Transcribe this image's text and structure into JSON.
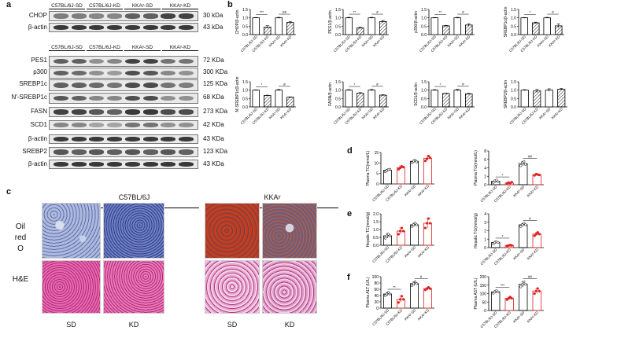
{
  "panel_labels": {
    "a": "a",
    "b": "b",
    "c": "c",
    "d": "d",
    "e": "e",
    "f": "f"
  },
  "panel_a": {
    "group_headers_top": [
      "C57BL/6J-SD",
      "C57BL/6J-KD",
      "KKAʸ-SD",
      "KKAʸ-KD"
    ],
    "group_headers_mid": [
      "C57BL/6J-SD",
      "C57BL/6J-KD",
      "KKAʸ-SD",
      "KKAʸ-KD"
    ],
    "blots": [
      {
        "label": "CHOP",
        "kda": "30 kDa",
        "intensity": [
          0.55,
          0.55,
          0.5,
          0.5,
          0.7,
          0.7,
          0.85,
          0.85
        ]
      },
      {
        "label": "β-actin",
        "kda": "43 kDa",
        "intensity": [
          0.9,
          0.9,
          0.9,
          0.9,
          0.9,
          0.9,
          0.9,
          0.9
        ]
      },
      {
        "label": "PES1",
        "kda": "72 KDa",
        "intensity": [
          0.7,
          0.7,
          0.45,
          0.5,
          0.85,
          0.85,
          0.6,
          0.6
        ]
      },
      {
        "label": "p300",
        "kda": "300 KDa",
        "intensity": [
          0.7,
          0.65,
          0.45,
          0.4,
          0.8,
          0.75,
          0.5,
          0.45
        ]
      },
      {
        "label": "SREBP1c",
        "kda": "125 KDa",
        "intensity": [
          0.7,
          0.7,
          0.65,
          0.6,
          0.8,
          0.8,
          0.6,
          0.55
        ]
      },
      {
        "label": "N′-SREBP1c",
        "kda": "68 KDa",
        "intensity": [
          0.75,
          0.7,
          0.5,
          0.5,
          0.8,
          0.8,
          0.45,
          0.45
        ]
      },
      {
        "label": "FASN",
        "kda": "273 KDa",
        "intensity": [
          0.85,
          0.85,
          0.75,
          0.7,
          0.9,
          0.9,
          0.8,
          0.8
        ]
      },
      {
        "label": "SCD1",
        "kda": "42 KDa",
        "intensity": [
          0.5,
          0.5,
          0.35,
          0.35,
          0.6,
          0.6,
          0.45,
          0.45
        ]
      },
      {
        "label": "β-actin",
        "kda": "43 KDa",
        "intensity": [
          0.9,
          0.9,
          0.9,
          0.9,
          0.9,
          0.9,
          0.9,
          0.9
        ]
      },
      {
        "label": "SREBP2",
        "kda": "123 KDa",
        "intensity": [
          0.75,
          0.7,
          0.75,
          0.7,
          0.75,
          0.7,
          0.75,
          0.7
        ]
      },
      {
        "label": "β-actin",
        "kda": "43 KDa",
        "intensity": [
          0.9,
          0.9,
          0.9,
          0.9,
          0.9,
          0.9,
          0.9,
          0.9
        ]
      }
    ]
  },
  "panel_c": {
    "group_titles": [
      "C57BL/6J",
      "KKAʸ"
    ],
    "row_labels": [
      "Oil\nred\nO",
      "H&E"
    ],
    "column_labels": [
      "SD",
      "KD",
      "SD",
      "KD"
    ]
  },
  "chart_data": [
    {
      "type": "bar",
      "panel": "b",
      "ylabel": "CHOP/β-actin",
      "categories": [
        "C57BL/6J-SD",
        "C57BL/6J-KD",
        "KKAʸ-SD",
        "KKAʸ-KD"
      ],
      "values": [
        1.0,
        0.45,
        1.0,
        0.72
      ],
      "errors": [
        0.02,
        0.08,
        0.03,
        0.05
      ],
      "ylim": [
        0,
        1.5
      ],
      "yticks": [
        "0.0",
        "0.5",
        "1.0",
        "1.5"
      ],
      "sig": [
        {
          "text": "***",
          "pair": [
            0,
            1
          ]
        },
        {
          "text": "##",
          "pair": [
            2,
            3
          ]
        }
      ]
    },
    {
      "type": "bar",
      "panel": "b",
      "ylabel": "PES1/β-actin",
      "categories": [
        "C57BL/6J-SD",
        "C57BL/6J-KD",
        "KKAʸ-SD",
        "KKAʸ-KD"
      ],
      "values": [
        1.0,
        0.4,
        1.0,
        0.78
      ],
      "errors": [
        0.03,
        0.04,
        0.03,
        0.06
      ],
      "ylim": [
        0,
        1.5
      ],
      "yticks": [
        "0.0",
        "0.5",
        "1.0",
        "1.5"
      ],
      "sig": [
        {
          "text": "**",
          "pair": [
            0,
            1
          ]
        },
        {
          "text": "#",
          "pair": [
            2,
            3
          ]
        }
      ]
    },
    {
      "type": "bar",
      "panel": "b",
      "ylabel": "p300/β-actin",
      "categories": [
        "C57BL/6J-SD",
        "C57BL/6J-KD",
        "KKAʸ-SD",
        "KKAʸ-KD"
      ],
      "values": [
        1.0,
        0.52,
        1.0,
        0.57
      ],
      "errors": [
        0.02,
        0.03,
        0.03,
        0.08
      ],
      "ylim": [
        0,
        1.5
      ],
      "yticks": [
        "0.0",
        "0.5",
        "1.0",
        "1.5"
      ],
      "sig": [
        {
          "text": "**",
          "pair": [
            0,
            1
          ]
        },
        {
          "text": "#",
          "pair": [
            2,
            3
          ]
        }
      ]
    },
    {
      "type": "bar",
      "panel": "b",
      "ylabel": "SREBP1c/β-actin",
      "categories": [
        "C57BL/6J-SD",
        "C57BL/6J-KD",
        "KKAʸ-SD",
        "KKAʸ-KD"
      ],
      "values": [
        1.0,
        0.7,
        1.0,
        0.52
      ],
      "errors": [
        0.02,
        0.04,
        0.03,
        0.12
      ],
      "ylim": [
        0,
        1.5
      ],
      "yticks": [
        "0.0",
        "0.5",
        "1.0",
        "1.5"
      ],
      "sig": [
        {
          "text": "*",
          "pair": [
            0,
            1
          ]
        },
        {
          "text": "#",
          "pair": [
            2,
            3
          ]
        }
      ]
    },
    {
      "type": "bar",
      "panel": "b",
      "ylabel": "N′-SREBP1c/β-actin",
      "categories": [
        "C57BL/6J-SD",
        "C57BL/6J-KD",
        "KKAʸ-SD",
        "KKAʸ-KD"
      ],
      "values": [
        1.0,
        0.68,
        1.0,
        0.58
      ],
      "errors": [
        0.02,
        0.02,
        0.04,
        0.02
      ],
      "ylim": [
        0,
        1.5
      ],
      "yticks": [
        "0.0",
        "0.5",
        "1.0",
        "1.5"
      ],
      "sig": [
        {
          "text": "*",
          "pair": [
            0,
            1
          ]
        },
        {
          "text": "#",
          "pair": [
            2,
            3
          ]
        }
      ]
    },
    {
      "type": "bar",
      "panel": "b",
      "ylabel": "FASN/β-actin",
      "categories": [
        "C57BL/6J-SD",
        "C57BL/6J-KD",
        "KKAʸ-SD",
        "KKAʸ-KD"
      ],
      "values": [
        1.0,
        0.82,
        1.0,
        0.7
      ],
      "errors": [
        0.03,
        0.03,
        0.04,
        0.03
      ],
      "ylim": [
        0,
        1.5
      ],
      "yticks": [
        "0.0",
        "0.5",
        "1.0",
        "1.5"
      ],
      "sig": [
        {
          "text": "*",
          "pair": [
            0,
            1
          ]
        },
        {
          "text": "#",
          "pair": [
            2,
            3
          ]
        }
      ]
    },
    {
      "type": "bar",
      "panel": "b",
      "ylabel": "SCD1/β-actin",
      "categories": [
        "C57BL/6J-SD",
        "C57BL/6J-KD",
        "KKAʸ-SD",
        "KKAʸ-KD"
      ],
      "values": [
        1.0,
        0.8,
        1.0,
        0.78
      ],
      "errors": [
        0.03,
        0.02,
        0.05,
        0.03
      ],
      "ylim": [
        0,
        1.5
      ],
      "yticks": [
        "0.0",
        "0.5",
        "1.0",
        "1.5"
      ],
      "sig": [
        {
          "text": "*",
          "pair": [
            0,
            1
          ]
        },
        {
          "text": "#",
          "pair": [
            2,
            3
          ]
        }
      ]
    },
    {
      "type": "bar",
      "panel": "b",
      "ylabel": "SREBP2/β-actin",
      "categories": [
        "C57BL/6J-SD",
        "C57BL/6J-KD",
        "KKAʸ-SD",
        "KKAʸ-KD"
      ],
      "values": [
        1.0,
        0.95,
        1.0,
        1.05
      ],
      "errors": [
        0.03,
        0.1,
        0.08,
        0.05
      ],
      "ylim": [
        0,
        1.5
      ],
      "yticks": [
        "0.0",
        "0.5",
        "1.0",
        "1.5"
      ],
      "sig": []
    },
    {
      "type": "bar",
      "panel": "d",
      "ylabel": "Plasma TC(mmol/L)",
      "categories": [
        "C57BL/6J-SD",
        "C57BL/6J-KD",
        "KKAʸ-SD",
        "KKAʸ-KD"
      ],
      "values": [
        6.5,
        7.8,
        10.8,
        12.2
      ],
      "errors": [
        0.5,
        0.8,
        0.6,
        1.0
      ],
      "points": [
        [
          5.8,
          6.4,
          6.9,
          7.0
        ],
        [
          7.0,
          7.7,
          8.4,
          8.0
        ],
        [
          10.1,
          10.9,
          11.4,
          10.5
        ],
        [
          11.0,
          12.0,
          13.3,
          12.5
        ]
      ],
      "ylim": [
        0,
        15
      ],
      "yticks": [
        "0",
        "5",
        "10",
        "15"
      ],
      "sig": []
    },
    {
      "type": "bar",
      "panel": "d",
      "ylabel": "Plasma TG(mmol/L)",
      "categories": [
        "C57BL/6J-SD",
        "C57BL/6J-KD",
        "KKAʸ-SD",
        "KKAʸ-KD"
      ],
      "values": [
        0.8,
        0.4,
        5.0,
        2.4
      ],
      "errors": [
        0.3,
        0.2,
        0.5,
        0.2
      ],
      "points": [
        [
          0.5,
          0.9,
          1.1,
          0.7
        ],
        [
          0.3,
          0.5,
          0.4,
          0.6
        ],
        [
          4.5,
          5.2,
          5.5,
          4.8
        ],
        [
          2.2,
          2.5,
          2.4,
          2.3
        ]
      ],
      "ylim": [
        0,
        8
      ],
      "yticks": [
        "0",
        "2",
        "4",
        "6",
        "8"
      ],
      "sig": [
        {
          "text": "*",
          "pair": [
            0,
            1
          ]
        },
        {
          "text": "##",
          "pair": [
            2,
            3
          ]
        }
      ]
    },
    {
      "type": "bar",
      "panel": "e",
      "ylabel": "Hepatic TC(mmol/g)",
      "categories": [
        "C57BL/6J-SD",
        "C57BL/6J-KD",
        "KKAʸ-SD",
        "KKAʸ-KD"
      ],
      "values": [
        0.6,
        0.9,
        1.3,
        1.4
      ],
      "errors": [
        0.15,
        0.2,
        0.1,
        0.3
      ],
      "points": [
        [
          0.45,
          0.6,
          0.7,
          0.6
        ],
        [
          0.7,
          0.9,
          1.1,
          0.9
        ],
        [
          1.2,
          1.3,
          1.4,
          1.3
        ],
        [
          1.1,
          1.4,
          1.7,
          1.4
        ]
      ],
      "ylim": [
        0,
        2.0
      ],
      "yticks": [
        "0.0",
        "0.5",
        "1.0",
        "1.5",
        "2.0"
      ],
      "sig": []
    },
    {
      "type": "bar",
      "panel": "e",
      "ylabel": "Hepatic TG(mmol/g)",
      "categories": [
        "C57BL/6J-SD",
        "C57BL/6J-KD",
        "KKAʸ-SD",
        "KKAʸ-KD"
      ],
      "values": [
        0.6,
        0.25,
        2.7,
        1.6
      ],
      "errors": [
        0.15,
        0.05,
        0.15,
        0.2
      ],
      "points": [
        [
          0.45,
          0.6,
          0.7,
          0.6
        ],
        [
          0.2,
          0.25,
          0.3,
          0.25
        ],
        [
          2.5,
          2.7,
          2.9,
          2.7
        ],
        [
          1.4,
          1.6,
          1.8,
          1.6
        ]
      ],
      "ylim": [
        0,
        4
      ],
      "yticks": [
        "0",
        "1",
        "2",
        "3",
        "4"
      ],
      "sig": [
        {
          "text": "*",
          "pair": [
            0,
            1
          ]
        },
        {
          "text": "#",
          "pair": [
            2,
            3
          ]
        }
      ]
    },
    {
      "type": "bar",
      "panel": "f",
      "ylabel": "Plasma ALT (U/L)",
      "categories": [
        "C57BL/6J-SD",
        "C57BL/6J-KD",
        "KKAʸ-SD",
        "KKAʸ-KD"
      ],
      "values": [
        45,
        28,
        78,
        62
      ],
      "errors": [
        5,
        10,
        6,
        4
      ],
      "points": [
        [
          40,
          45,
          50,
          45
        ],
        [
          18,
          28,
          38,
          28
        ],
        [
          72,
          78,
          84,
          78
        ],
        [
          58,
          62,
          66,
          62
        ]
      ],
      "ylim": [
        0,
        100
      ],
      "yticks": [
        "0",
        "20",
        "40",
        "60",
        "80",
        "100"
      ],
      "sig": [
        {
          "text": "**",
          "pair": [
            0,
            1
          ]
        },
        {
          "text": "#",
          "pair": [
            2,
            3
          ]
        }
      ]
    },
    {
      "type": "bar",
      "panel": "f",
      "ylabel": "Plasma AST (U/L)",
      "categories": [
        "C57BL/6J-SD",
        "C57BL/6J-KD",
        "KKAʸ-SD",
        "KKAʸ-KD"
      ],
      "values": [
        110,
        72,
        155,
        115
      ],
      "errors": [
        8,
        8,
        15,
        15
      ],
      "points": [
        [
          102,
          110,
          118,
          110
        ],
        [
          64,
          72,
          80,
          72
        ],
        [
          140,
          155,
          170,
          155
        ],
        [
          100,
          115,
          130,
          115
        ]
      ],
      "ylim": [
        0,
        200
      ],
      "yticks": [
        "0",
        "50",
        "100",
        "150",
        "200"
      ],
      "sig": [
        {
          "text": "***",
          "pair": [
            0,
            1
          ]
        },
        {
          "text": "##",
          "pair": [
            2,
            3
          ]
        }
      ]
    }
  ]
}
